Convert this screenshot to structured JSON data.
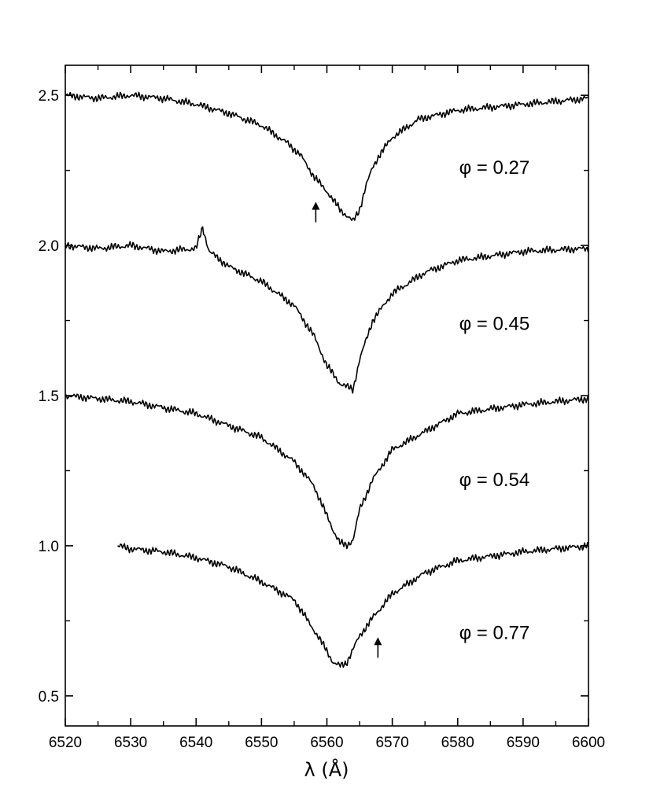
{
  "chart_data": {
    "type": "line",
    "title": "",
    "xlabel": "λ (Å)",
    "ylabel": "",
    "xlim": [
      6520,
      6600
    ],
    "ylim": [
      0.4,
      2.6
    ],
    "x_ticks": [
      "6520",
      "6530",
      "6540",
      "6550",
      "6560",
      "6570",
      "6580",
      "6590",
      "6600"
    ],
    "y_ticks": [
      "0.5",
      "1.0",
      "1.5",
      "2.0",
      "2.5"
    ],
    "grid": false,
    "series": [
      {
        "name": "φ = 0.27",
        "label_anchor": [
          6591,
          2.26
        ],
        "x": [
          6520,
          6525,
          6530,
          6535,
          6540,
          6545,
          6550,
          6554,
          6556,
          6558,
          6560,
          6562,
          6563,
          6564,
          6565,
          6566,
          6567,
          6568,
          6570,
          6574,
          6580,
          6590,
          6600
        ],
        "y": [
          2.5,
          2.49,
          2.5,
          2.49,
          2.47,
          2.44,
          2.4,
          2.34,
          2.3,
          2.23,
          2.18,
          2.12,
          2.1,
          2.08,
          2.12,
          2.2,
          2.26,
          2.3,
          2.36,
          2.42,
          2.45,
          2.47,
          2.49
        ]
      },
      {
        "name": "φ = 0.45",
        "label_anchor": [
          6591,
          1.74
        ],
        "x": [
          6520,
          6525,
          6530,
          6535,
          6540,
          6541,
          6542,
          6545,
          6550,
          6555,
          6558,
          6560,
          6562,
          6563,
          6564,
          6565,
          6567,
          6570,
          6575,
          6580,
          6590,
          6600
        ],
        "y": [
          2.0,
          1.99,
          2.0,
          1.98,
          1.99,
          2.06,
          1.98,
          1.93,
          1.88,
          1.8,
          1.7,
          1.6,
          1.54,
          1.53,
          1.52,
          1.62,
          1.75,
          1.84,
          1.91,
          1.95,
          1.98,
          1.99
        ]
      },
      {
        "name": "φ = 0.54",
        "label_anchor": [
          6591,
          1.22
        ],
        "x": [
          6520,
          6525,
          6530,
          6535,
          6540,
          6545,
          6550,
          6555,
          6558,
          6560,
          6561,
          6562,
          6563,
          6564,
          6565,
          6567,
          6570,
          6575,
          6580,
          6590,
          6600
        ],
        "y": [
          1.5,
          1.49,
          1.48,
          1.46,
          1.44,
          1.4,
          1.36,
          1.28,
          1.2,
          1.1,
          1.05,
          1.01,
          1.0,
          1.02,
          1.12,
          1.22,
          1.32,
          1.38,
          1.44,
          1.47,
          1.49
        ]
      },
      {
        "name": "φ = 0.77",
        "label_anchor": [
          6591,
          0.71
        ],
        "x": [
          6528,
          6530,
          6535,
          6540,
          6545,
          6550,
          6555,
          6558,
          6560,
          6561,
          6562,
          6563,
          6565,
          6567,
          6570,
          6575,
          6580,
          6590,
          6600
        ],
        "y": [
          1.0,
          0.99,
          0.98,
          0.96,
          0.93,
          0.88,
          0.82,
          0.72,
          0.65,
          0.61,
          0.6,
          0.61,
          0.7,
          0.76,
          0.84,
          0.91,
          0.95,
          0.98,
          1.0
        ]
      }
    ],
    "annotations": [
      {
        "type": "arrow",
        "x": 6558.3,
        "y": 2.14,
        "direction": "up"
      },
      {
        "type": "arrow",
        "x": 6567.8,
        "y": 0.69,
        "direction": "up"
      }
    ]
  }
}
